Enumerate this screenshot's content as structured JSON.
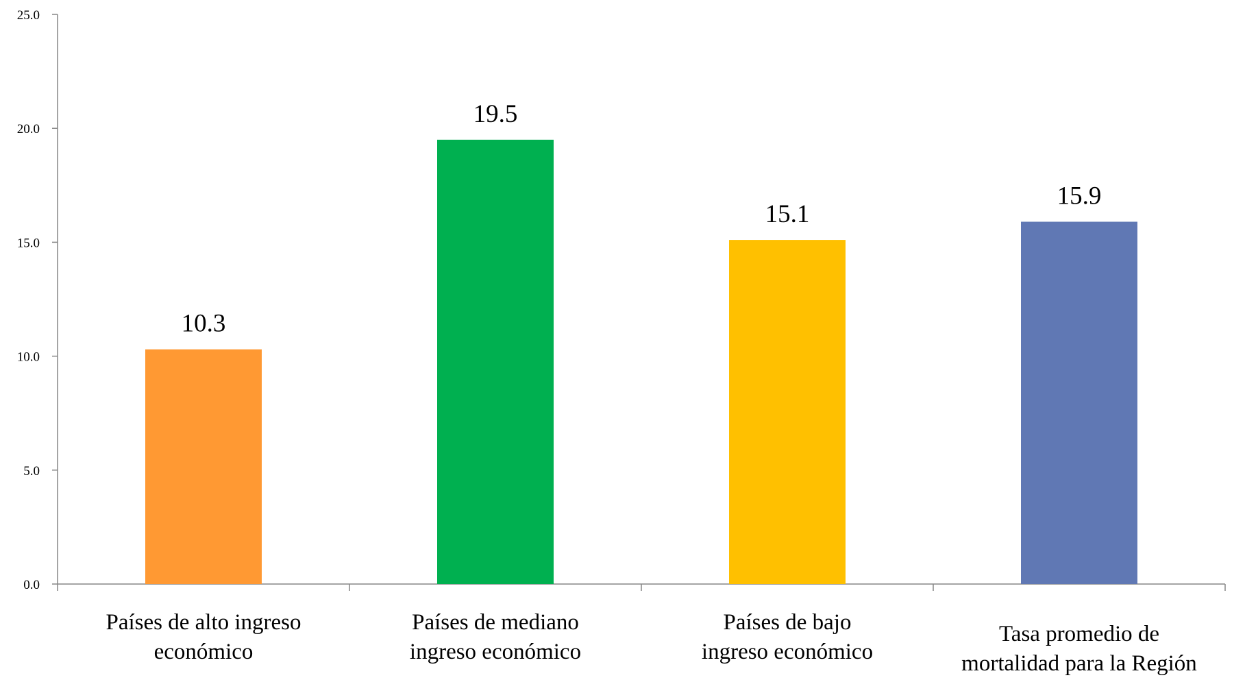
{
  "chart_data": {
    "type": "bar",
    "categories": [
      [
        "Países de alto ingreso",
        "económico"
      ],
      [
        "Países de mediano",
        "ingreso económico"
      ],
      [
        "Países de bajo",
        "ingreso económico"
      ],
      [
        "Tasa promedio de",
        "mortalidad para la Región"
      ]
    ],
    "values": [
      10.3,
      19.5,
      15.1,
      15.9
    ],
    "data_labels": [
      "10.3",
      "19.5",
      "15.1",
      "15.9"
    ],
    "colors": [
      "#FF9933",
      "#00B050",
      "#FFC000",
      "#6078B4"
    ],
    "ylim": [
      0,
      25
    ],
    "yticks": [
      "0.0",
      "5.0",
      "10.0",
      "15.0",
      "20.0",
      "25.0"
    ],
    "grid": false,
    "legend": "none",
    "title": "",
    "xlabel": "",
    "ylabel": ""
  }
}
